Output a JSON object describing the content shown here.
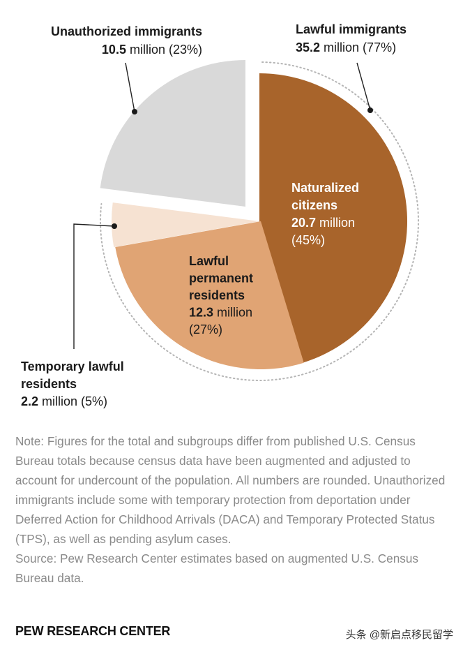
{
  "chart_data": {
    "type": "pie",
    "slices": [
      {
        "id": "naturalized",
        "label_lines": [
          "Naturalized",
          "citizens"
        ],
        "value": 20.7,
        "unit": "million",
        "percent": "(45%)",
        "color": "#a8642b"
      },
      {
        "id": "permanent",
        "label_lines": [
          "Lawful",
          "permanent",
          "residents"
        ],
        "value": 12.3,
        "unit": "million",
        "percent": "(27%)",
        "color": "#e0a474"
      },
      {
        "id": "temporary",
        "label_lines": [
          "Temporary lawful",
          "residents"
        ],
        "value": 2.2,
        "unit": "million",
        "percent": "(5%)",
        "color": "#f6e2d2"
      },
      {
        "id": "unauthorized",
        "label_lines": [
          "Unauthorized immigrants"
        ],
        "value": 10.5,
        "unit": "million",
        "percent": "(23%)",
        "color": "#d9d9d9"
      }
    ],
    "groups": [
      {
        "id": "lawful",
        "label": "Lawful immigrants",
        "value": 35.2,
        "unit": "million",
        "percent": "(77%)"
      }
    ]
  },
  "note": {
    "text": "Note: Figures for the total and subgroups differ from published U.S. Census Bureau totals because census data have been augmented and adjusted to account for undercount of the population. All numbers are rounded. Unauthorized immigrants include some with temporary protection from deportation under Deferred Action for Childhood Arrivals (DACA) and Temporary Protected Status (TPS), as well as pending asylum cases.",
    "source": "Source: Pew Research Center estimates based on augmented U.S. Census Bureau data."
  },
  "brand": "PEW RESEARCH CENTER",
  "watermark": "头条 @新启点移民留学"
}
